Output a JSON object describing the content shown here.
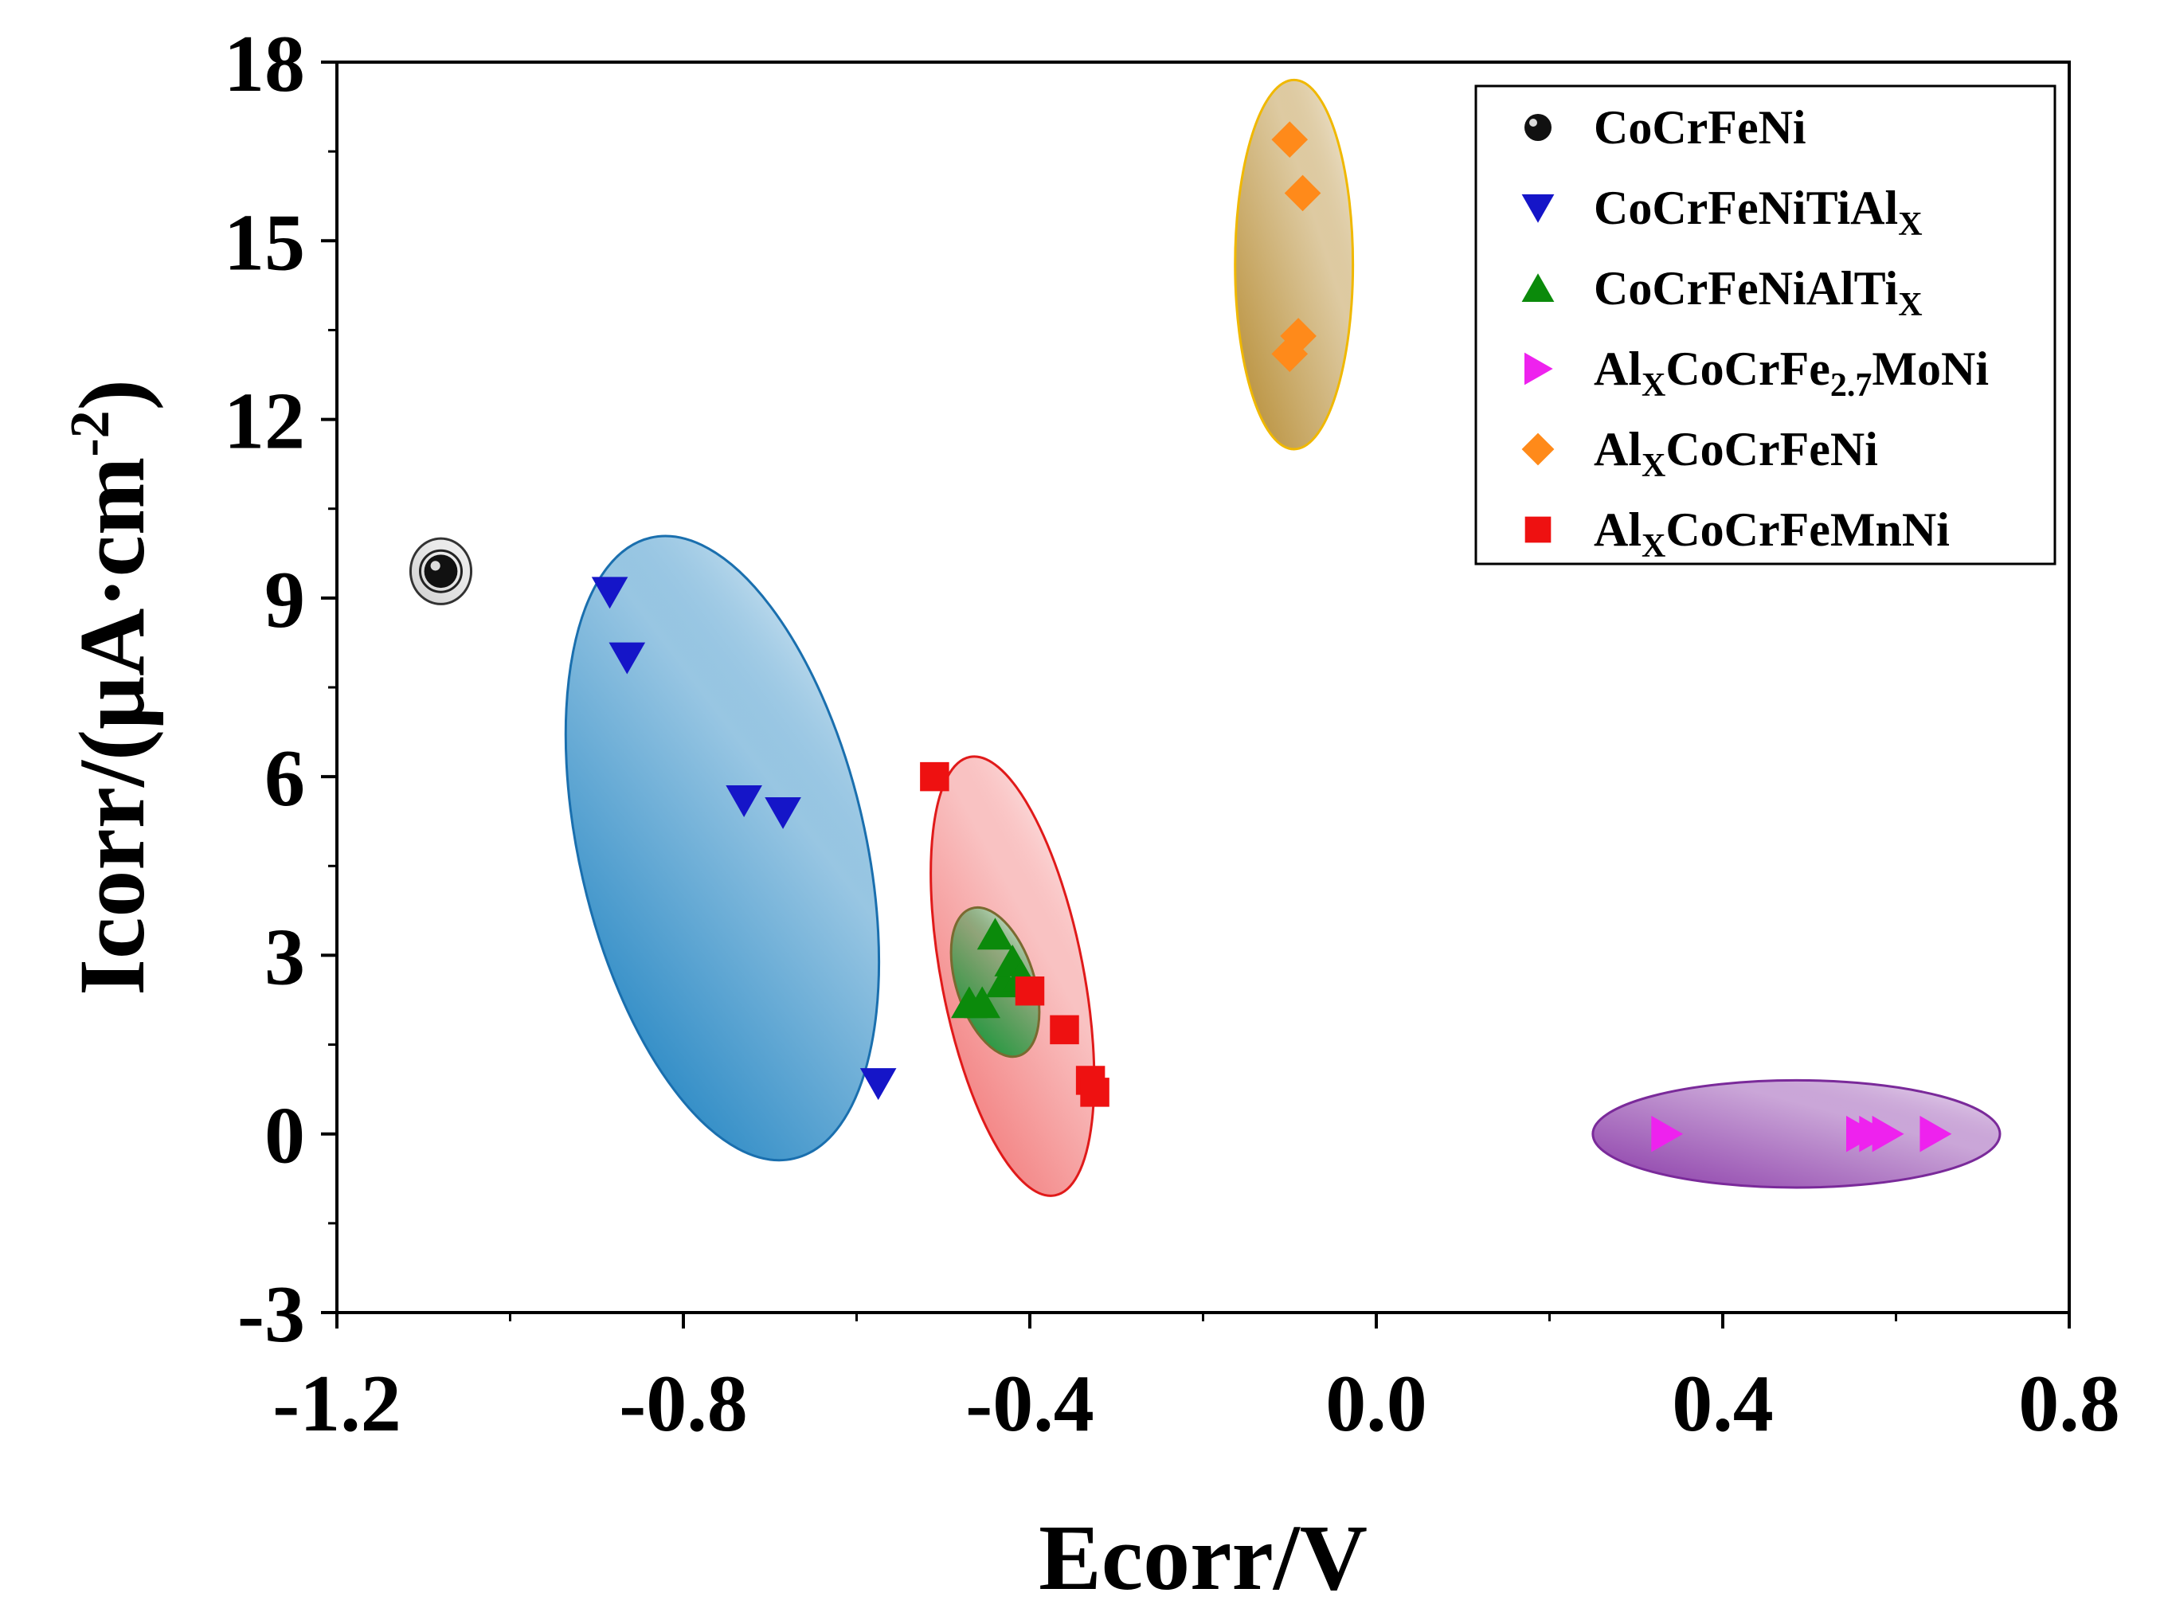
{
  "chart_data": {
    "type": "scatter",
    "title": "",
    "xlabel": "Ecorr/V",
    "ylabel_parts": [
      "Icorr/(μA·cm",
      "-2",
      ")"
    ],
    "xlim": [
      -1.2,
      0.8
    ],
    "ylim": [
      -3,
      18
    ],
    "xticks": [
      -1.2,
      -0.8,
      -0.4,
      0.0,
      0.4,
      0.8
    ],
    "xtick_labels": [
      "-1.2",
      "-0.8",
      "-0.4",
      "0.0",
      "0.4",
      "0.8"
    ],
    "xminor": [
      -1.0,
      -0.6,
      -0.2,
      0.2,
      0.6
    ],
    "yticks": [
      -3,
      0,
      3,
      6,
      9,
      12,
      15,
      18
    ],
    "ytick_labels": [
      "-3",
      "0",
      "3",
      "6",
      "9",
      "12",
      "15",
      "18"
    ],
    "yminor": [
      -1.5,
      1.5,
      4.5,
      7.5,
      10.5,
      13.5,
      16.5
    ],
    "legend_position": "top-right",
    "series": [
      {
        "name": "CoCrFeNi",
        "label_parts": [
          {
            "t": "CoCrFeNi"
          }
        ],
        "marker": "circle",
        "color": "#111111",
        "points": [
          [
            -1.08,
            9.45
          ]
        ]
      },
      {
        "name": "CoCrFeNiTiAlX",
        "label_parts": [
          {
            "t": "CoCrFeNiTiAl"
          },
          {
            "t": "X",
            "sub": true
          }
        ],
        "marker": "triangle-down",
        "color": "#1515c8",
        "points": [
          [
            -0.885,
            9.1
          ],
          [
            -0.865,
            8.0
          ],
          [
            -0.73,
            5.6
          ],
          [
            -0.685,
            5.4
          ],
          [
            -0.575,
            0.85
          ]
        ]
      },
      {
        "name": "CoCrFeNiAlTiX",
        "label_parts": [
          {
            "t": "CoCrFeNiAlTi"
          },
          {
            "t": "X",
            "sub": true
          }
        ],
        "marker": "triangle-up",
        "color": "#0b8a0b",
        "points": [
          [
            -0.47,
            2.2
          ],
          [
            -0.455,
            2.2
          ],
          [
            -0.44,
            3.35
          ],
          [
            -0.43,
            2.55
          ],
          [
            -0.42,
            2.9
          ],
          [
            -0.41,
            2.65
          ]
        ]
      },
      {
        "name": "AlXCoCrFe2.7MoNi",
        "label_parts": [
          {
            "t": "Al"
          },
          {
            "t": "X",
            "sub": true
          },
          {
            "t": "CoCrFe"
          },
          {
            "t": "2.7",
            "sub": true
          },
          {
            "t": "MoNi"
          }
        ],
        "marker": "triangle-right",
        "color": "#ee22ee",
        "points": [
          [
            0.335,
            0.0
          ],
          [
            0.56,
            0.0
          ],
          [
            0.575,
            0.0
          ],
          [
            0.59,
            0.0
          ],
          [
            0.645,
            0.0
          ]
        ]
      },
      {
        "name": "AlXCoCrFeNi",
        "label_parts": [
          {
            "t": "Al"
          },
          {
            "t": "X",
            "sub": true
          },
          {
            "t": "CoCrFeNi"
          }
        ],
        "marker": "diamond",
        "color": "#ff8a1a",
        "points": [
          [
            -0.1,
            16.7
          ],
          [
            -0.085,
            15.8
          ],
          [
            -0.09,
            13.4
          ],
          [
            -0.1,
            13.1
          ]
        ]
      },
      {
        "name": "AlXCoCrFeMnNi",
        "label_parts": [
          {
            "t": "Al"
          },
          {
            "t": "X",
            "sub": true
          },
          {
            "t": "CoCrFeMnNi"
          }
        ],
        "marker": "square",
        "color": "#ee1111",
        "points": [
          [
            -0.51,
            6.0
          ],
          [
            -0.4,
            2.4
          ],
          [
            -0.36,
            1.75
          ],
          [
            -0.33,
            0.9
          ],
          [
            -0.325,
            0.7
          ]
        ]
      }
    ],
    "ellipses": [
      {
        "group": "CoCrFeNi",
        "cx": -1.08,
        "cy": 9.45,
        "rx": 0.035,
        "ry": 0.55,
        "angle": 0,
        "fill": "#d0d0d0",
        "stroke": "#333333"
      },
      {
        "group": "CoCrFeNiTiAlX",
        "cx": -0.755,
        "cy": 4.8,
        "rx": 0.165,
        "ry": 5.35,
        "angle": -13,
        "fill": "#1a80c0",
        "stroke": "#1a6fae"
      },
      {
        "group": "AlXCoCrFeMnNi",
        "cx": -0.42,
        "cy": 2.65,
        "rx": 0.082,
        "ry": 3.75,
        "angle": -11,
        "fill": "#f27878",
        "stroke": "#e01a1a"
      },
      {
        "group": "CoCrFeNiAlTiX",
        "cx": -0.44,
        "cy": 2.55,
        "rx": 0.045,
        "ry": 1.3,
        "angle": -18,
        "fill": "#129a3a",
        "stroke": "#7a6a30"
      },
      {
        "group": "AlXCoCrFeNi",
        "cx": -0.095,
        "cy": 14.6,
        "rx": 0.068,
        "ry": 3.1,
        "angle": 0,
        "fill": "#b58a30",
        "stroke": "#f0b800"
      },
      {
        "group": "AlXCoCrFe2.7MoNi",
        "cx": 0.485,
        "cy": 0.0,
        "rx": 0.235,
        "ry": 0.9,
        "angle": 0,
        "fill": "#8a3aa8",
        "stroke": "#7a2a9a"
      }
    ]
  }
}
